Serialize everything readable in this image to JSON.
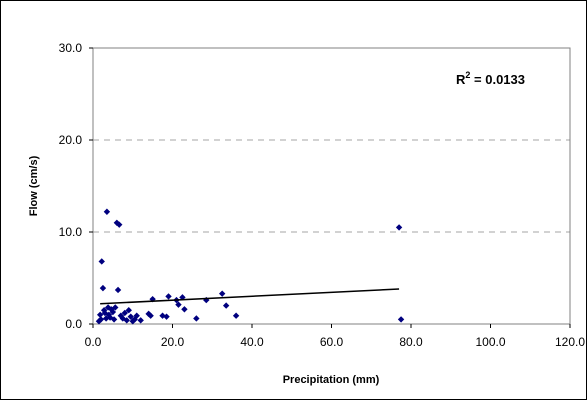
{
  "chart_data": {
    "type": "scatter",
    "title": "",
    "xlabel": "Precipitation (mm)",
    "ylabel": "Flow (cm/s)",
    "xlim": [
      0,
      120
    ],
    "ylim": [
      0,
      30
    ],
    "x_ticks": [
      0,
      20,
      40,
      60,
      80,
      100,
      120
    ],
    "y_ticks": [
      0,
      10,
      20,
      30
    ],
    "x_tick_labels": [
      "0.0",
      "20.0",
      "40.0",
      "60.0",
      "80.0",
      "100.0",
      "120.0"
    ],
    "y_tick_labels": [
      "0.0",
      "10.0",
      "20.0",
      "30.0"
    ],
    "grid": "horizontal dashed at 10 and 20",
    "marker_color": "#00007f",
    "trendline_color": "#000000",
    "grid_color": "#a6a6a6",
    "annotation": {
      "text_main": "R",
      "text_sup": "2",
      "text_rest": " = 0.0133"
    },
    "trendline": {
      "x": [
        1.8,
        77
      ],
      "y": [
        2.2,
        3.8
      ]
    },
    "series": [
      {
        "points": [
          [
            1.5,
            0.3
          ],
          [
            1.8,
            1.0
          ],
          [
            2.0,
            0.5
          ],
          [
            2.2,
            6.8
          ],
          [
            2.5,
            3.9
          ],
          [
            2.8,
            1.5
          ],
          [
            3.0,
            1.2
          ],
          [
            3.3,
            0.6
          ],
          [
            3.5,
            12.2
          ],
          [
            3.8,
            1.8
          ],
          [
            4.0,
            1.0
          ],
          [
            4.3,
            0.7
          ],
          [
            4.6,
            1.6
          ],
          [
            5.0,
            1.3
          ],
          [
            5.3,
            0.5
          ],
          [
            5.6,
            1.8
          ],
          [
            6.0,
            11.0
          ],
          [
            6.3,
            3.7
          ],
          [
            6.6,
            10.8
          ],
          [
            7.0,
            0.9
          ],
          [
            7.5,
            0.6
          ],
          [
            8.0,
            1.2
          ],
          [
            8.5,
            0.4
          ],
          [
            9.0,
            1.5
          ],
          [
            9.5,
            0.8
          ],
          [
            10.0,
            0.3
          ],
          [
            10.5,
            0.5
          ],
          [
            11.0,
            0.9
          ],
          [
            12.0,
            0.4
          ],
          [
            14.0,
            1.1
          ],
          [
            14.5,
            0.9
          ],
          [
            15.0,
            2.7
          ],
          [
            17.5,
            0.9
          ],
          [
            18.5,
            0.8
          ],
          [
            19.0,
            3.0
          ],
          [
            21.0,
            2.6
          ],
          [
            21.5,
            2.1
          ],
          [
            22.5,
            2.9
          ],
          [
            23.0,
            1.6
          ],
          [
            26.0,
            0.6
          ],
          [
            28.5,
            2.6
          ],
          [
            32.5,
            3.3
          ],
          [
            33.5,
            2.0
          ],
          [
            36.0,
            0.9
          ],
          [
            77.0,
            10.5
          ],
          [
            77.5,
            0.5
          ]
        ]
      }
    ]
  }
}
